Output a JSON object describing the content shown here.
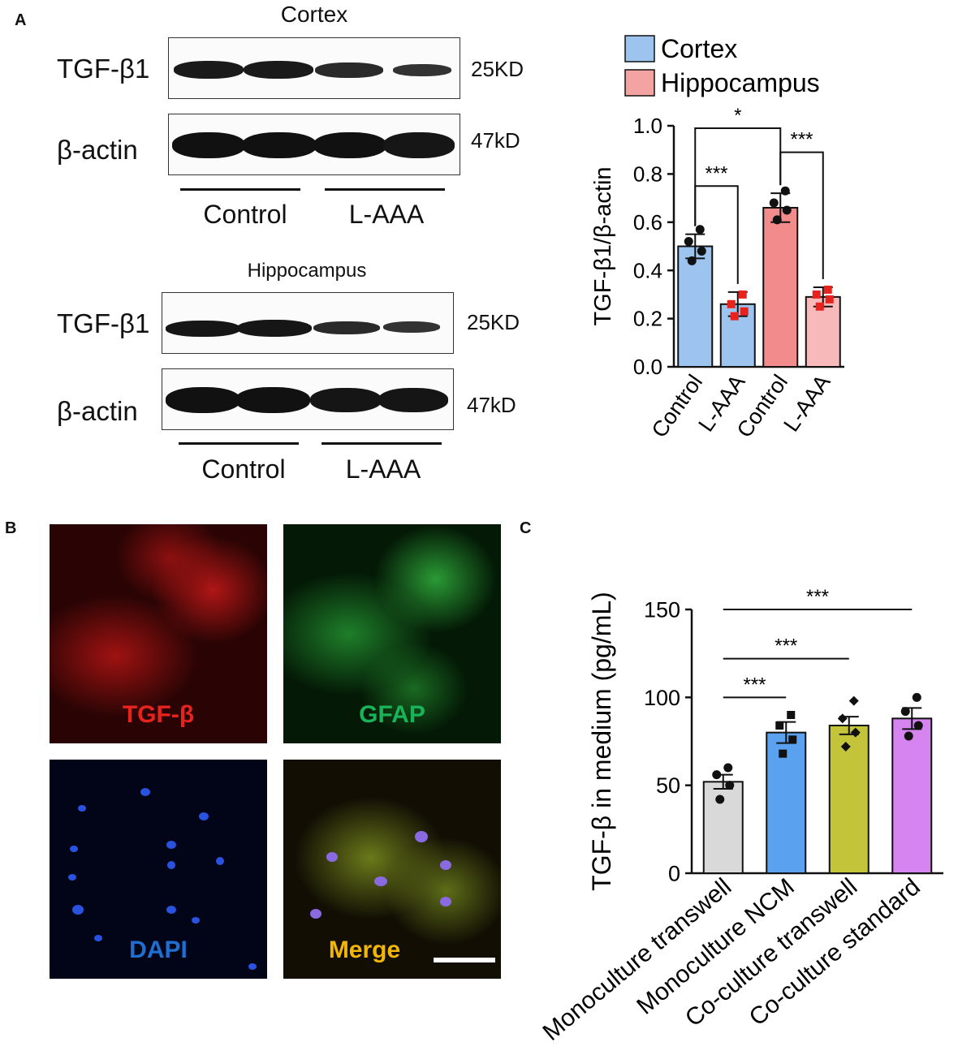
{
  "panel_labels": {
    "a": "A",
    "b": "B",
    "c": "C"
  },
  "blots": {
    "cortex": {
      "title": "Cortex",
      "rows": [
        {
          "label": "TGF-β1",
          "kd": "25KD"
        },
        {
          "label": "β-actin",
          "kd": "47kD"
        }
      ],
      "groups": [
        "Control",
        "L-AAA"
      ]
    },
    "hippocampus": {
      "title": "Hippocampus",
      "rows": [
        {
          "label": "TGF-β1",
          "kd": "25KD"
        },
        {
          "label": "β-actin",
          "kd": "47kD"
        }
      ],
      "groups": [
        "Control",
        "L-AAA"
      ]
    }
  },
  "micrographs": [
    {
      "label": "TGF-β",
      "color": "#e8231e"
    },
    {
      "label": "GFAP",
      "color": "#19b35a"
    },
    {
      "label": "DAPI",
      "color": "#1f6fd1"
    },
    {
      "label": "Merge",
      "color": "#f2b705"
    }
  ],
  "chart_data": [
    {
      "type": "bar",
      "ylabel": "TGF-β1/β-actin",
      "ylim": [
        0,
        1.0
      ],
      "yticks": [
        0.0,
        0.2,
        0.4,
        0.6,
        0.8,
        1.0
      ],
      "ytick_labels": [
        "0.0",
        "0.2",
        "0.4",
        "0.6",
        "0.8",
        "1.0"
      ],
      "legend": [
        {
          "name": "Cortex",
          "color": "#9dc3ef"
        },
        {
          "name": "Hippocampus",
          "color": "#f4a3a3"
        }
      ],
      "categories": [
        "Control",
        "L-AAA",
        "Control",
        "L-AAA"
      ],
      "values": [
        0.5,
        0.26,
        0.66,
        0.29
      ],
      "errors": [
        0.05,
        0.05,
        0.06,
        0.04
      ],
      "bar_colors": [
        "#9dc3ef",
        "#9dc3ef",
        "#f28b8b",
        "#f7b9b9"
      ],
      "point_colors": [
        "#111111",
        "#e8231e",
        "#111111",
        "#e8231e"
      ],
      "points": [
        [
          0.57,
          0.52,
          0.48,
          0.44
        ],
        [
          0.3,
          0.26,
          0.23,
          0.21
        ],
        [
          0.73,
          0.68,
          0.65,
          0.61
        ],
        [
          0.32,
          0.3,
          0.28,
          0.25
        ]
      ],
      "significance": [
        {
          "from": 0,
          "to": 1,
          "label": "***",
          "y": 0.75
        },
        {
          "from": 0,
          "to": 2,
          "label": "*",
          "y": 0.99
        },
        {
          "from": 2,
          "to": 3,
          "label": "***",
          "y": 0.89
        }
      ]
    },
    {
      "type": "bar",
      "ylabel": "TGF-β in medium (pg/mL)",
      "ylim": [
        0,
        150
      ],
      "yticks": [
        0,
        50,
        100,
        150
      ],
      "ytick_labels": [
        "0",
        "50",
        "100",
        "150"
      ],
      "categories": [
        "Monoculture transwell",
        "Monoculture NCM",
        "Co-culture transwell",
        "Co-culture standard"
      ],
      "values": [
        52,
        80,
        84,
        88
      ],
      "errors": [
        4,
        6,
        5,
        6
      ],
      "bar_colors": [
        "#d9d9d9",
        "#5aa2f0",
        "#c4c43a",
        "#d684f0"
      ],
      "point_markers": [
        "circle",
        "square",
        "diamond",
        "circle"
      ],
      "points": [
        [
          60,
          56,
          50,
          42
        ],
        [
          90,
          84,
          76,
          68
        ],
        [
          98,
          88,
          80,
          72
        ],
        [
          100,
          92,
          84,
          78
        ]
      ],
      "significance": [
        {
          "from": 0,
          "to": 1,
          "label": "***",
          "y": 100
        },
        {
          "from": 0,
          "to": 2,
          "label": "***",
          "y": 122
        },
        {
          "from": 0,
          "to": 3,
          "label": "***",
          "y": 150
        }
      ]
    }
  ]
}
